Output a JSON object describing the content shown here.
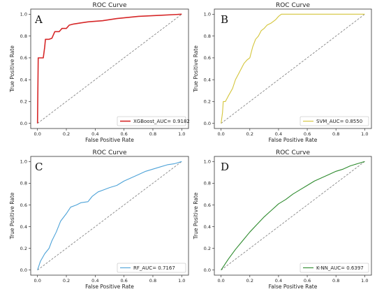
{
  "chart_data": [
    {
      "type": "line",
      "panel": "A",
      "title": "ROC Curve",
      "xlabel": "False Positive Rate",
      "ylabel": "True Positive Rate",
      "xlim": [
        0,
        1
      ],
      "ylim": [
        0,
        1
      ],
      "xticks": [
        "0.0",
        "0.2",
        "0.4",
        "0.6",
        "0.8",
        "1.0"
      ],
      "yticks": [
        "0.0",
        "0.2",
        "0.4",
        "0.6",
        "0.8",
        "1.0"
      ],
      "legend_position": "bottom-right",
      "grid": false,
      "baseline": "diagonal-dashed",
      "series": [
        {
          "name": "XGBoost_AUC= 0.9182",
          "color": "#d62728",
          "points": [
            [
              0,
              0
            ],
            [
              0.005,
              0.6
            ],
            [
              0.04,
              0.6
            ],
            [
              0.045,
              0.65
            ],
            [
              0.05,
              0.7
            ],
            [
              0.055,
              0.77
            ],
            [
              0.08,
              0.77
            ],
            [
              0.1,
              0.78
            ],
            [
              0.12,
              0.84
            ],
            [
              0.15,
              0.84
            ],
            [
              0.17,
              0.87
            ],
            [
              0.2,
              0.87
            ],
            [
              0.22,
              0.9
            ],
            [
              0.25,
              0.91
            ],
            [
              0.3,
              0.92
            ],
            [
              0.35,
              0.93
            ],
            [
              0.45,
              0.94
            ],
            [
              0.55,
              0.96
            ],
            [
              0.7,
              0.98
            ],
            [
              0.85,
              0.99
            ],
            [
              1,
              1
            ]
          ]
        }
      ]
    },
    {
      "type": "line",
      "panel": "B",
      "title": "ROC Curve",
      "xlabel": "False Positive Rate",
      "ylabel": "True Positive Rate",
      "xlim": [
        0,
        1
      ],
      "ylim": [
        0,
        1
      ],
      "xticks": [
        "0.0",
        "0.2",
        "0.4",
        "0.6",
        "0.8",
        "1.0"
      ],
      "yticks": [
        "0.0",
        "0.2",
        "0.4",
        "0.6",
        "0.8",
        "1.0"
      ],
      "legend_position": "bottom-right",
      "grid": false,
      "baseline": "diagonal-dashed",
      "series": [
        {
          "name": "SVM_AUC= 0.8550",
          "color": "#d4c53a",
          "points": [
            [
              0,
              0
            ],
            [
              0.01,
              0.1
            ],
            [
              0.015,
              0.2
            ],
            [
              0.03,
              0.2
            ],
            [
              0.05,
              0.25
            ],
            [
              0.08,
              0.32
            ],
            [
              0.1,
              0.4
            ],
            [
              0.12,
              0.45
            ],
            [
              0.14,
              0.5
            ],
            [
              0.16,
              0.55
            ],
            [
              0.18,
              0.58
            ],
            [
              0.2,
              0.6
            ],
            [
              0.22,
              0.7
            ],
            [
              0.24,
              0.77
            ],
            [
              0.26,
              0.8
            ],
            [
              0.28,
              0.85
            ],
            [
              0.3,
              0.87
            ],
            [
              0.32,
              0.9
            ],
            [
              0.35,
              0.92
            ],
            [
              0.38,
              0.95
            ],
            [
              0.4,
              0.98
            ],
            [
              0.42,
              1
            ],
            [
              0.6,
              1
            ],
            [
              1,
              1
            ]
          ]
        }
      ]
    },
    {
      "type": "line",
      "panel": "C",
      "title": "ROC Curve",
      "xlabel": "False Positive Rate",
      "ylabel": "True Positive Rate",
      "xlim": [
        0,
        1
      ],
      "ylim": [
        0,
        1
      ],
      "xticks": [
        "0.0",
        "0.2",
        "0.4",
        "0.6",
        "0.8",
        "1.0"
      ],
      "yticks": [
        "0.0",
        "0.2",
        "0.4",
        "0.6",
        "0.8",
        "1.0"
      ],
      "legend_position": "bottom-right",
      "grid": false,
      "baseline": "diagonal-dashed",
      "series": [
        {
          "name": "RF_AUC= 0.7167",
          "color": "#4ea3d8",
          "points": [
            [
              0,
              0
            ],
            [
              0.02,
              0.08
            ],
            [
              0.05,
              0.15
            ],
            [
              0.08,
              0.2
            ],
            [
              0.1,
              0.27
            ],
            [
              0.13,
              0.35
            ],
            [
              0.16,
              0.45
            ],
            [
              0.2,
              0.52
            ],
            [
              0.23,
              0.58
            ],
            [
              0.27,
              0.6
            ],
            [
              0.3,
              0.62
            ],
            [
              0.35,
              0.63
            ],
            [
              0.38,
              0.68
            ],
            [
              0.42,
              0.72
            ],
            [
              0.46,
              0.74
            ],
            [
              0.5,
              0.76
            ],
            [
              0.55,
              0.78
            ],
            [
              0.6,
              0.82
            ],
            [
              0.65,
              0.85
            ],
            [
              0.7,
              0.88
            ],
            [
              0.75,
              0.91
            ],
            [
              0.8,
              0.93
            ],
            [
              0.85,
              0.95
            ],
            [
              0.9,
              0.97
            ],
            [
              0.95,
              0.98
            ],
            [
              1,
              1
            ]
          ]
        }
      ]
    },
    {
      "type": "line",
      "panel": "D",
      "title": "ROC Curve",
      "xlabel": "False Positive Rate",
      "ylabel": "True Positive Rate",
      "xlim": [
        0,
        1
      ],
      "ylim": [
        0,
        1
      ],
      "xticks": [
        "0.0",
        "0.2",
        "0.4",
        "0.6",
        "0.8",
        "1.0"
      ],
      "yticks": [
        "0.0",
        "0.2",
        "0.4",
        "0.6",
        "0.8",
        "1.0"
      ],
      "legend_position": "bottom-right",
      "grid": false,
      "baseline": "diagonal-dashed",
      "series": [
        {
          "name": "K-NN_AUC= 0.6397",
          "color": "#2e8b2e",
          "points": [
            [
              0,
              0
            ],
            [
              0.05,
              0.1
            ],
            [
              0.1,
              0.19
            ],
            [
              0.15,
              0.27
            ],
            [
              0.2,
              0.35
            ],
            [
              0.25,
              0.42
            ],
            [
              0.3,
              0.49
            ],
            [
              0.35,
              0.55
            ],
            [
              0.4,
              0.61
            ],
            [
              0.45,
              0.65
            ],
            [
              0.5,
              0.7
            ],
            [
              0.55,
              0.74
            ],
            [
              0.6,
              0.78
            ],
            [
              0.65,
              0.82
            ],
            [
              0.7,
              0.85
            ],
            [
              0.75,
              0.88
            ],
            [
              0.8,
              0.91
            ],
            [
              0.85,
              0.93
            ],
            [
              0.9,
              0.96
            ],
            [
              0.95,
              0.98
            ],
            [
              1,
              1
            ]
          ]
        }
      ]
    }
  ]
}
